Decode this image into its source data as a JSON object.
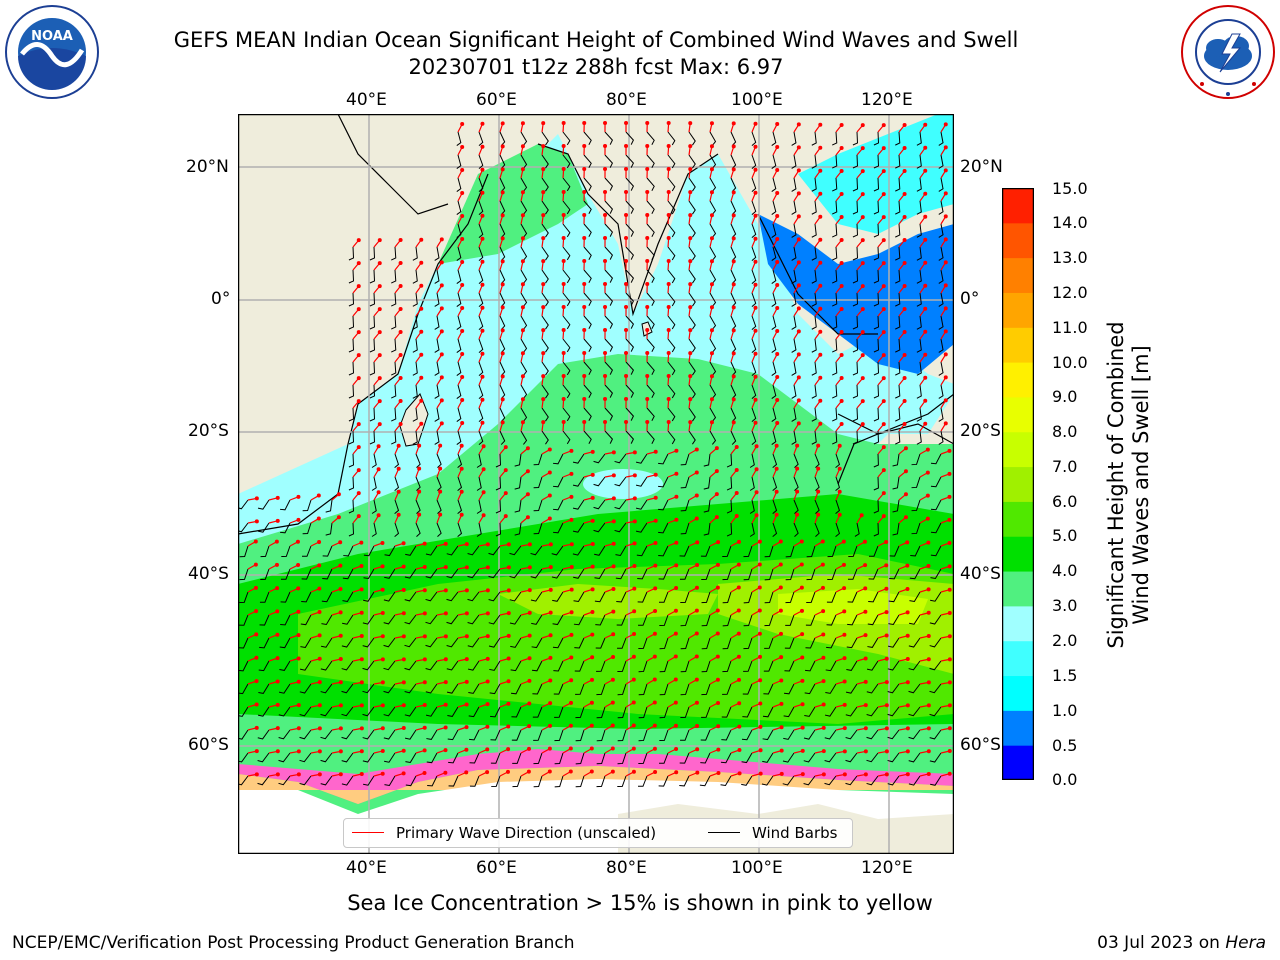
{
  "title": {
    "line1": "GEFS MEAN Indian Ocean Significant Height of Combined Wind Waves and Swell",
    "line2": "20230701 t12z 288h fcst   Max: 6.97"
  },
  "logos": {
    "noaa": {
      "text": "NOAA",
      "ring": "NATIONAL OCEANIC AND ATMOSPHERIC ADMINISTRATION · U.S. DEPARTMENT OF COMMERCE"
    },
    "nws": {
      "ring": "NATIONAL WEATHER SERVICE"
    }
  },
  "map": {
    "lon_top": [
      "40°E",
      "60°E",
      "80°E",
      "100°E",
      "120°E"
    ],
    "lon_bottom": [
      "40°E",
      "60°E",
      "80°E",
      "100°E",
      "120°E"
    ],
    "lat_left": [
      "20°N",
      "0°",
      "20°S",
      "40°S",
      "60°S"
    ],
    "lat_right": [
      "20°N",
      "0°",
      "20°S",
      "40°S",
      "60°S"
    ],
    "lon_range": [
      20,
      130
    ],
    "lat_range": [
      -75,
      28
    ],
    "land_color": "#efeddc",
    "grid_color": "#b0b0b0"
  },
  "legend": {
    "wave_direction": "Primary Wave Direction (unscaled)",
    "wind_barbs": "Wind Barbs",
    "wave_color": "#ff0000",
    "barb_color": "#000000"
  },
  "colorbar": {
    "label_line1": "Significant Height of Combined",
    "label_line2": "Wind Waves and Swell [m]",
    "ticks": [
      "0.0",
      "0.5",
      "1.0",
      "1.5",
      "2.0",
      "3.0",
      "4.0",
      "5.0",
      "6.0",
      "7.0",
      "8.0",
      "9.0",
      "10.0",
      "11.0",
      "12.0",
      "13.0",
      "14.0",
      "15.0"
    ],
    "colors": [
      "#0000ff",
      "#0080ff",
      "#00ffff",
      "#40ffff",
      "#a0ffff",
      "#50f080",
      "#00e000",
      "#50e800",
      "#a0f000",
      "#c8ff00",
      "#e8ff00",
      "#fff000",
      "#ffcc00",
      "#ffa500",
      "#ff8000",
      "#ff5500",
      "#ff2000"
    ]
  },
  "ice_note": "Sea Ice Concentration > 15% is shown in pink to yellow",
  "footer": {
    "left": "NCEP/EMC/Verification Post Processing Product Generation Branch",
    "date": "03 Jul 2023 on ",
    "machine": "Hera"
  }
}
